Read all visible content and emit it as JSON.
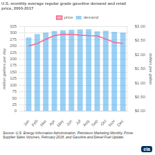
{
  "chart_data": {
    "type": "bar",
    "title": [
      "U.S. monthly average regular grade gasoline demand and retail",
      "price, 2000-2017"
    ],
    "ylabel": "million gallons per day",
    "y2label": "dollars per gallon",
    "categories": [
      "Jan",
      "Feb",
      "Mar",
      "Apr",
      "May",
      "Jun",
      "Jul",
      "Aug",
      "Sep",
      "Oct",
      "Nov",
      "Dec"
    ],
    "series": [
      {
        "name": "demand",
        "type": "bar",
        "values": [
          283,
          296,
          302,
          308,
          311,
          313,
          314,
          315,
          307,
          309,
          305,
          302
        ]
      },
      {
        "name": "price",
        "type": "line",
        "axis": "y2",
        "marker": "none",
        "values": [
          2.31,
          2.4,
          2.55,
          2.68,
          2.73,
          2.72,
          2.7,
          2.68,
          2.67,
          2.56,
          2.44,
          2.4
        ]
      }
    ],
    "ylim": [
      0,
      325
    ],
    "yticks": [
      0,
      25,
      50,
      75,
      100,
      125,
      150,
      175,
      200,
      225,
      250,
      275,
      300,
      325
    ],
    "y2lim": [
      0.0,
      3.0
    ],
    "y2ticks": [
      {
        "value": 0.0,
        "label": "$0.00"
      },
      {
        "value": 0.5,
        "label": "$0.50"
      },
      {
        "value": 1.0,
        "label": "$1.00"
      },
      {
        "value": 1.5,
        "label": "$1.50"
      },
      {
        "value": 2.0,
        "label": "$2.00"
      },
      {
        "value": 2.5,
        "label": "$2.50"
      },
      {
        "value": 3.0,
        "label": "$3.00"
      }
    ],
    "grid": true,
    "legend": "top",
    "annotations": [
      "Source: U.S. Energy Information Administration, Petroleum Marketing Monthly, Prime\nSupplier Sales Volumes, February 2018, and Gasoline and Diesel Fuel Update.",
      "eia"
    ]
  }
}
